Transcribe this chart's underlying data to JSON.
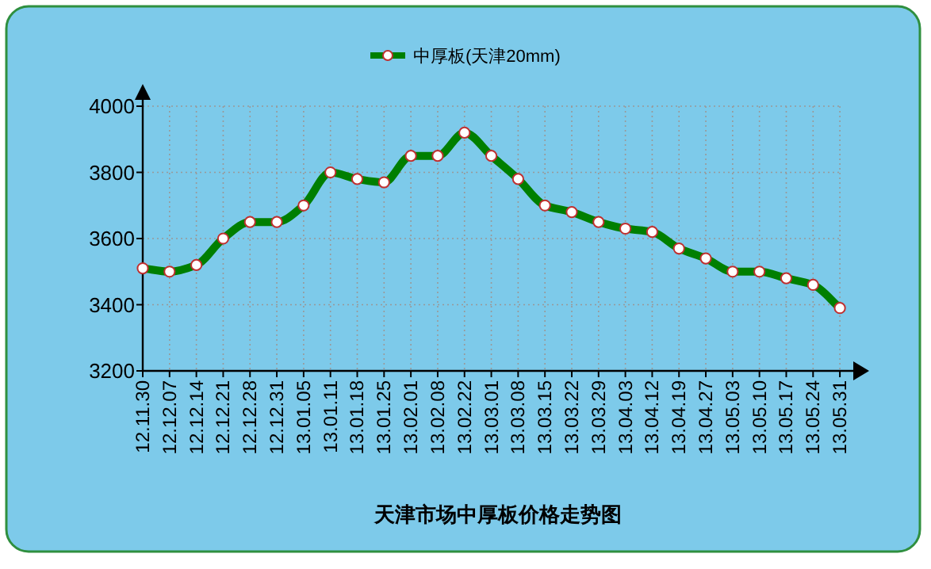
{
  "chart_data": {
    "type": "line",
    "title": "天津市场中厚板价格走势图",
    "categories": [
      "12.11.30",
      "12.12.07",
      "12.12.14",
      "12.12.21",
      "12.12.28",
      "12.12.31",
      "13.01.05",
      "13.01.11",
      "13.01.18",
      "13.01.25",
      "13.02.01",
      "13.02.08",
      "13.02.22",
      "13.03.01",
      "13.03.08",
      "13.03.15",
      "13.03.22",
      "13.03.29",
      "13.04.03",
      "13.04.12",
      "13.04.19",
      "13.04.27",
      "13.05.03",
      "13.05.10",
      "13.05.17",
      "13.05.24",
      "13.05.31"
    ],
    "series": [
      {
        "name": "中厚板(天津20mm)",
        "color": "#007f00",
        "values": [
          3510,
          3500,
          3520,
          3600,
          3650,
          3650,
          3700,
          3800,
          3780,
          3770,
          3850,
          3850,
          3920,
          3850,
          3780,
          3700,
          3680,
          3650,
          3630,
          3620,
          3570,
          3540,
          3500,
          3500,
          3480,
          3460,
          3390
        ]
      }
    ],
    "ylim": [
      3200,
      4000
    ],
    "yticks": [
      3200,
      3400,
      3600,
      3800,
      4000
    ],
    "grid": true,
    "legend": "top",
    "marker": "circle",
    "line_style": "solid"
  }
}
